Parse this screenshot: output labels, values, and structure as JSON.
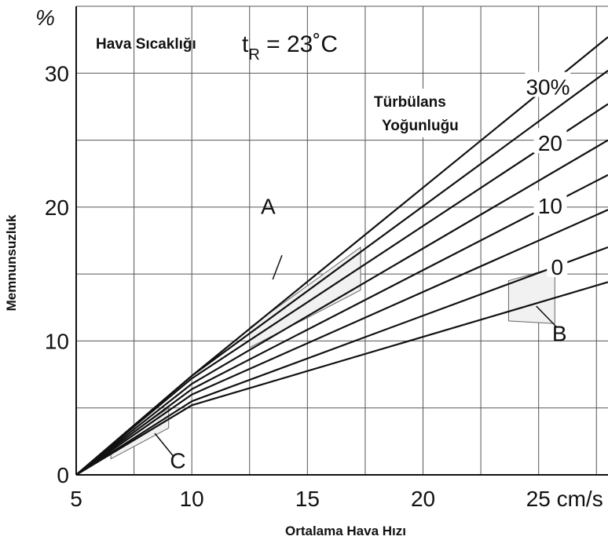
{
  "chart_data": {
    "type": "line",
    "title": "",
    "xlabel": "Ortalama Hava Hızı",
    "ylabel": "Memnunsuzluk",
    "x_unit": "cm/s",
    "y_unit": "%",
    "xlim": [
      5,
      28
    ],
    "ylim": [
      0,
      35
    ],
    "grid": true,
    "x_ticks": [
      "5",
      "10",
      "15",
      "20",
      "25 cm/s"
    ],
    "x_tick_values": [
      5,
      10,
      15,
      20,
      25
    ],
    "y_ticks": [
      "0",
      "10",
      "20",
      "30"
    ],
    "y_tick_values": [
      0,
      10,
      20,
      30
    ],
    "y_unit_label": "%",
    "annotation_temp_label": "Hava Sıcaklığı",
    "annotation_temp_value": "t",
    "annotation_temp_sub": "R",
    "annotation_temp_rest": " = 23˚C",
    "legend_title_line1": "Türbülans",
    "legend_title_line2": "Yoğunluğu",
    "curve_labels": [
      {
        "text": "30%",
        "series_index": 0
      },
      {
        "text": "20",
        "series_index": 2
      },
      {
        "text": "10",
        "series_index": 4
      },
      {
        "text": "0",
        "series_index": 6
      }
    ],
    "box_labels": [
      "A",
      "B",
      "C"
    ],
    "series": [
      {
        "x": [
          5,
          10,
          28
        ],
        "values": [
          0,
          7.4,
          32.7
        ]
      },
      {
        "x": [
          5,
          10,
          28
        ],
        "values": [
          0,
          7.4,
          30.2
        ]
      },
      {
        "x": [
          5,
          10,
          28
        ],
        "values": [
          0,
          7.2,
          27.7
        ]
      },
      {
        "x": [
          5,
          10,
          28
        ],
        "values": [
          0,
          6.8,
          25.0
        ]
      },
      {
        "x": [
          5,
          10,
          28
        ],
        "values": [
          0,
          6.4,
          22.4
        ]
      },
      {
        "x": [
          5,
          10,
          28
        ],
        "values": [
          0,
          6.0,
          19.8
        ]
      },
      {
        "x": [
          5,
          10,
          28
        ],
        "values": [
          0,
          5.5,
          17.0
        ]
      },
      {
        "x": [
          5,
          10,
          28
        ],
        "values": [
          0,
          5.2,
          14.4
        ]
      }
    ],
    "regions": [
      {
        "name": "A",
        "corners": [
          [
            12.5,
            11.0
          ],
          [
            17.3,
            17.0
          ],
          [
            17.3,
            13.8
          ],
          [
            12.5,
            9.5
          ]
        ]
      },
      {
        "name": "B",
        "corners": [
          [
            23.7,
            14.5
          ],
          [
            25.7,
            15.5
          ],
          [
            25.7,
            11.3
          ],
          [
            23.7,
            11.5
          ]
        ]
      },
      {
        "name": "C",
        "corners": [
          [
            6.5,
            2.0
          ],
          [
            9.0,
            5.0
          ],
          [
            9.0,
            3.5
          ],
          [
            6.5,
            1.2
          ]
        ]
      }
    ]
  }
}
